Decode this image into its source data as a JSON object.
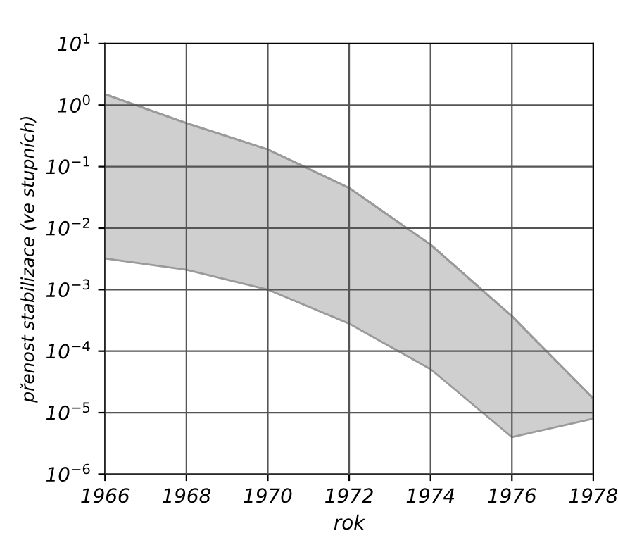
{
  "chart_data": {
    "type": "line",
    "xlabel": "rok",
    "ylabel": "přenost stabilizace (ve stupních)",
    "x": [
      1966,
      1968,
      1970,
      1972,
      1974,
      1976,
      1978
    ],
    "series": [
      {
        "color": "#9a9a9a",
        "values": [
          1.5,
          0.51,
          0.19,
          0.045,
          0.0054,
          0.00037,
          1.7e-05
        ],
        "lower": [
          0.0032,
          0.0021,
          0.001,
          0.00028,
          5.1e-05,
          4e-06,
          8e-06
        ],
        "upper": [
          1.5,
          0.51,
          0.19,
          0.045,
          0.0054,
          0.00037,
          1.7e-05
        ]
      }
    ],
    "log": "y",
    "xlim": [
      1966,
      1978
    ],
    "xticks": [
      1966,
      1968,
      1970,
      1972,
      1974,
      1976,
      1978
    ],
    "ylim": [
      1e-06,
      10
    ],
    "yticks": [
      {
        "value": 1e-06,
        "label": "10$^{−6}$"
      },
      {
        "value": 1e-05,
        "label": "10$^{−5}$"
      },
      {
        "value": 0.0001,
        "label": "10$^{−4}$"
      },
      {
        "value": 0.001,
        "label": "10$^{−3}$"
      },
      {
        "value": 0.01,
        "label": "10$^{−2}$"
      },
      {
        "value": 0.1,
        "label": "10$^{−1}$"
      },
      {
        "value": 1,
        "label": "10$^{0}$"
      },
      {
        "value": 10,
        "label": "10$^{1}$"
      }
    ],
    "grid": true
  }
}
